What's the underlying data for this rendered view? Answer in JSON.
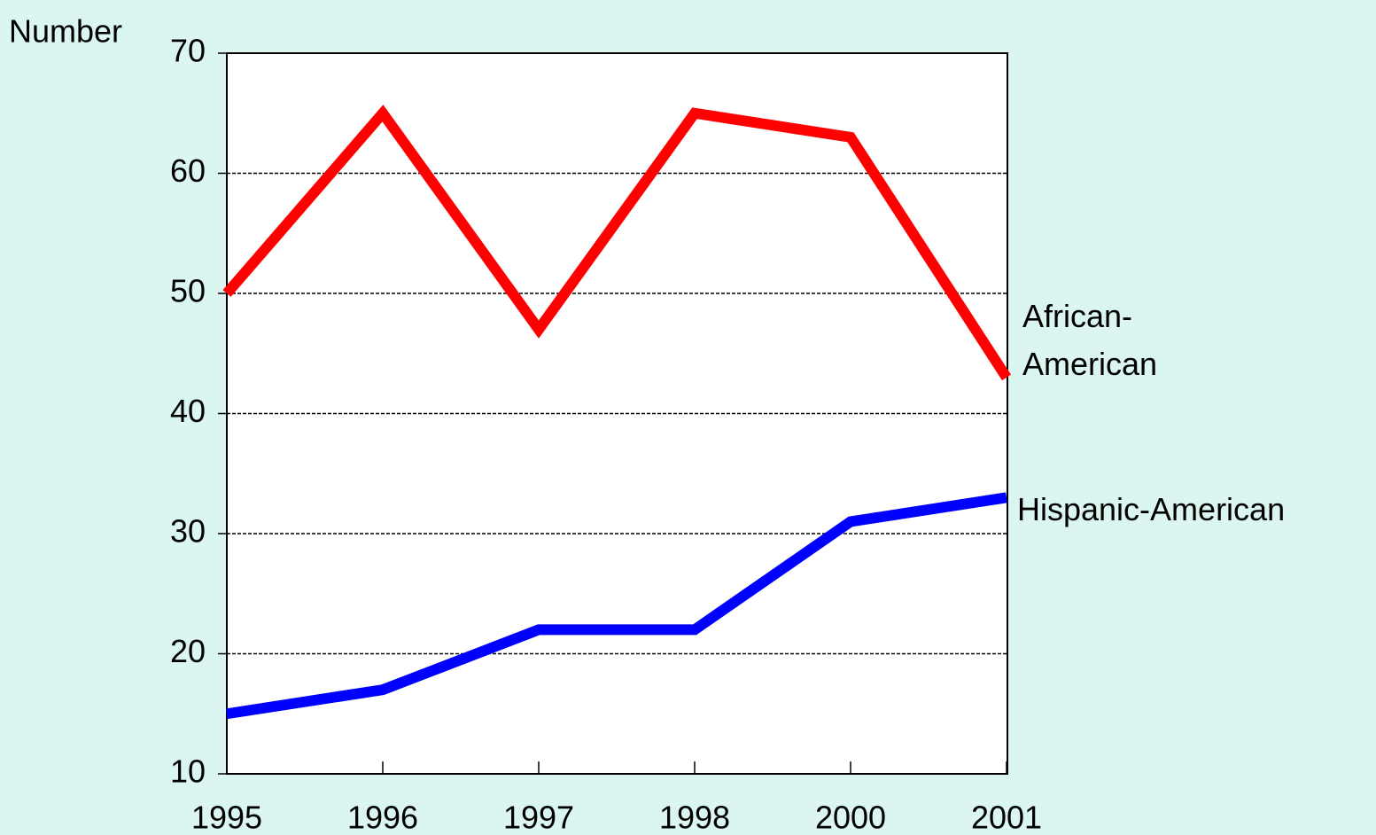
{
  "chart_data": {
    "type": "line",
    "y_label": "Number",
    "categories": [
      "1995",
      "1996",
      "1997",
      "1998",
      "2000",
      "2001"
    ],
    "series": [
      {
        "name": "African-American",
        "color": "#ff0000",
        "values": [
          50,
          65,
          47,
          65,
          63,
          43
        ]
      },
      {
        "name": "Hispanic-American",
        "color": "#0000ff",
        "values": [
          15,
          17,
          22,
          22,
          31,
          33
        ]
      }
    ],
    "ylim": [
      10,
      70
    ],
    "yticks": [
      10,
      20,
      30,
      40,
      50,
      60,
      70
    ],
    "grid": true
  }
}
